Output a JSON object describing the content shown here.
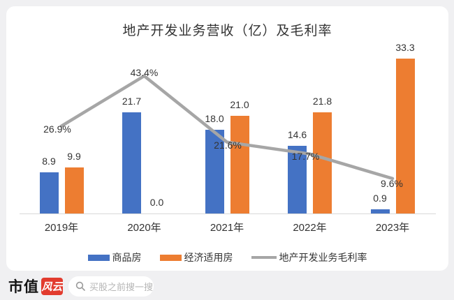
{
  "chart_data": {
    "type": "bar",
    "subtype": "grouped-bars-with-line",
    "title": "地产开发业务营收（亿）及毛利率",
    "categories": [
      "2019年",
      "2020年",
      "2021年",
      "2022年",
      "2023年"
    ],
    "series": [
      {
        "name": "商品房",
        "type": "bar",
        "color": "#4472C4",
        "unit": "亿",
        "values": [
          8.9,
          21.7,
          18.0,
          14.6,
          0.9
        ]
      },
      {
        "name": "经济适用房",
        "type": "bar",
        "color": "#ED7D31",
        "unit": "亿",
        "values": [
          9.9,
          0.0,
          21.0,
          21.8,
          33.3
        ]
      },
      {
        "name": "地产开发业务毛利率",
        "type": "line",
        "color": "#A6A6A6",
        "unit": "%",
        "values": [
          26.9,
          43.4,
          21.6,
          17.7,
          9.6
        ]
      }
    ],
    "data_labels": true,
    "legend_position": "bottom",
    "grid": false,
    "axis_color": "#D9D9D9",
    "bar_value_range": [
      0,
      33.3
    ],
    "line_value_range_pct": [
      9.6,
      43.4
    ]
  },
  "footer": {
    "brand_text": "市值",
    "brand_badge": "风云",
    "search_placeholder": "买股之前搜一搜"
  },
  "colors": {
    "page_background": "#F0F0F2",
    "card_background": "#FFFFFF",
    "bar_blue": "#4472C4",
    "bar_orange": "#ED7D31",
    "line_gray": "#A6A6A6",
    "label_text": "#333333",
    "brand_red": "#E23B2E",
    "placeholder_gray": "#B5B5B5"
  }
}
